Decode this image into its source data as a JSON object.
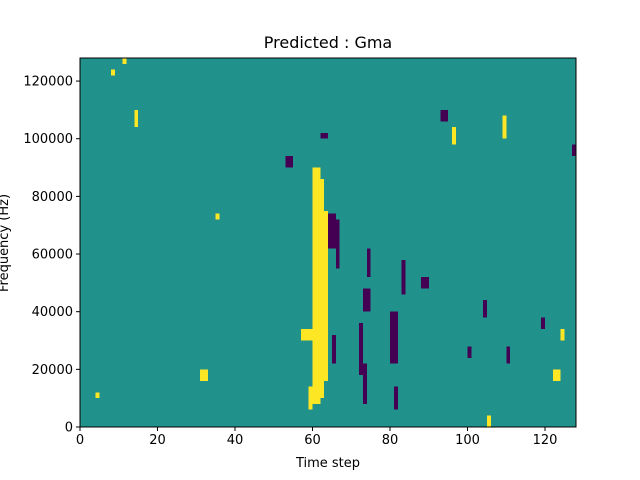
{
  "chart_data": {
    "type": "heatmap",
    "title": "Predicted : Gma",
    "xlabel": "Time step",
    "ylabel": "Frequency (Hz)",
    "xlim": [
      0,
      128
    ],
    "ylim": [
      0,
      128000
    ],
    "xticks": [
      0,
      20,
      40,
      60,
      80,
      100,
      120
    ],
    "yticks": [
      0,
      20000,
      40000,
      60000,
      80000,
      100000,
      120000
    ],
    "x_cells": 128,
    "y_cells": 128,
    "colormap": {
      "low": "#440154",
      "mid": "#21918c",
      "high": "#fde725"
    },
    "background_value": "mid",
    "cells": [
      {
        "x0": 60,
        "x1": 62,
        "y0": 8000,
        "y1": 90000,
        "v": "high"
      },
      {
        "x0": 62,
        "x1": 63,
        "y0": 10000,
        "y1": 86000,
        "v": "high"
      },
      {
        "x0": 63,
        "x1": 64,
        "y0": 16000,
        "y1": 75000,
        "v": "high"
      },
      {
        "x0": 59,
        "x1": 60,
        "y0": 6000,
        "y1": 14000,
        "v": "high"
      },
      {
        "x0": 57,
        "x1": 60,
        "y0": 30000,
        "y1": 34000,
        "v": "high"
      },
      {
        "x0": 64,
        "x1": 66,
        "y0": 62000,
        "y1": 74000,
        "v": "low"
      },
      {
        "x0": 66,
        "x1": 67,
        "y0": 55000,
        "y1": 72000,
        "v": "low"
      },
      {
        "x0": 65,
        "x1": 66,
        "y0": 22000,
        "y1": 32000,
        "v": "low"
      },
      {
        "x0": 72,
        "x1": 73,
        "y0": 18000,
        "y1": 36000,
        "v": "low"
      },
      {
        "x0": 73,
        "x1": 74,
        "y0": 8000,
        "y1": 22000,
        "v": "low"
      },
      {
        "x0": 73,
        "x1": 75,
        "y0": 40000,
        "y1": 48000,
        "v": "low"
      },
      {
        "x0": 74,
        "x1": 75,
        "y0": 52000,
        "y1": 62000,
        "v": "low"
      },
      {
        "x0": 80,
        "x1": 82,
        "y0": 22000,
        "y1": 40000,
        "v": "low"
      },
      {
        "x0": 81,
        "x1": 82,
        "y0": 6000,
        "y1": 14000,
        "v": "low"
      },
      {
        "x0": 83,
        "x1": 84,
        "y0": 46000,
        "y1": 58000,
        "v": "low"
      },
      {
        "x0": 88,
        "x1": 90,
        "y0": 48000,
        "y1": 52000,
        "v": "low"
      },
      {
        "x0": 53,
        "x1": 55,
        "y0": 90000,
        "y1": 94000,
        "v": "low"
      },
      {
        "x0": 93,
        "x1": 95,
        "y0": 106000,
        "y1": 110000,
        "v": "low"
      },
      {
        "x0": 62,
        "x1": 64,
        "y0": 100000,
        "y1": 102000,
        "v": "low"
      },
      {
        "x0": 4,
        "x1": 5,
        "y0": 10000,
        "y1": 12000,
        "v": "high"
      },
      {
        "x0": 8,
        "x1": 9,
        "y0": 122000,
        "y1": 124000,
        "v": "high"
      },
      {
        "x0": 11,
        "x1": 12,
        "y0": 126000,
        "y1": 128000,
        "v": "high"
      },
      {
        "x0": 14,
        "x1": 15,
        "y0": 104000,
        "y1": 110000,
        "v": "high"
      },
      {
        "x0": 31,
        "x1": 33,
        "y0": 16000,
        "y1": 20000,
        "v": "high"
      },
      {
        "x0": 35,
        "x1": 36,
        "y0": 72000,
        "y1": 74000,
        "v": "high"
      },
      {
        "x0": 96,
        "x1": 97,
        "y0": 98000,
        "y1": 104000,
        "v": "high"
      },
      {
        "x0": 109,
        "x1": 110,
        "y0": 100000,
        "y1": 108000,
        "v": "high"
      },
      {
        "x0": 122,
        "x1": 124,
        "y0": 16000,
        "y1": 20000,
        "v": "high"
      },
      {
        "x0": 124,
        "x1": 125,
        "y0": 30000,
        "y1": 34000,
        "v": "high"
      },
      {
        "x0": 105,
        "x1": 106,
        "y0": 0,
        "y1": 4000,
        "v": "high"
      },
      {
        "x0": 100,
        "x1": 101,
        "y0": 24000,
        "y1": 28000,
        "v": "low"
      },
      {
        "x0": 119,
        "x1": 120,
        "y0": 34000,
        "y1": 38000,
        "v": "low"
      },
      {
        "x0": 127,
        "x1": 128,
        "y0": 94000,
        "y1": 98000,
        "v": "low"
      },
      {
        "x0": 104,
        "x1": 105,
        "y0": 38000,
        "y1": 44000,
        "v": "low"
      },
      {
        "x0": 110,
        "x1": 111,
        "y0": 22000,
        "y1": 28000,
        "v": "low"
      }
    ]
  }
}
